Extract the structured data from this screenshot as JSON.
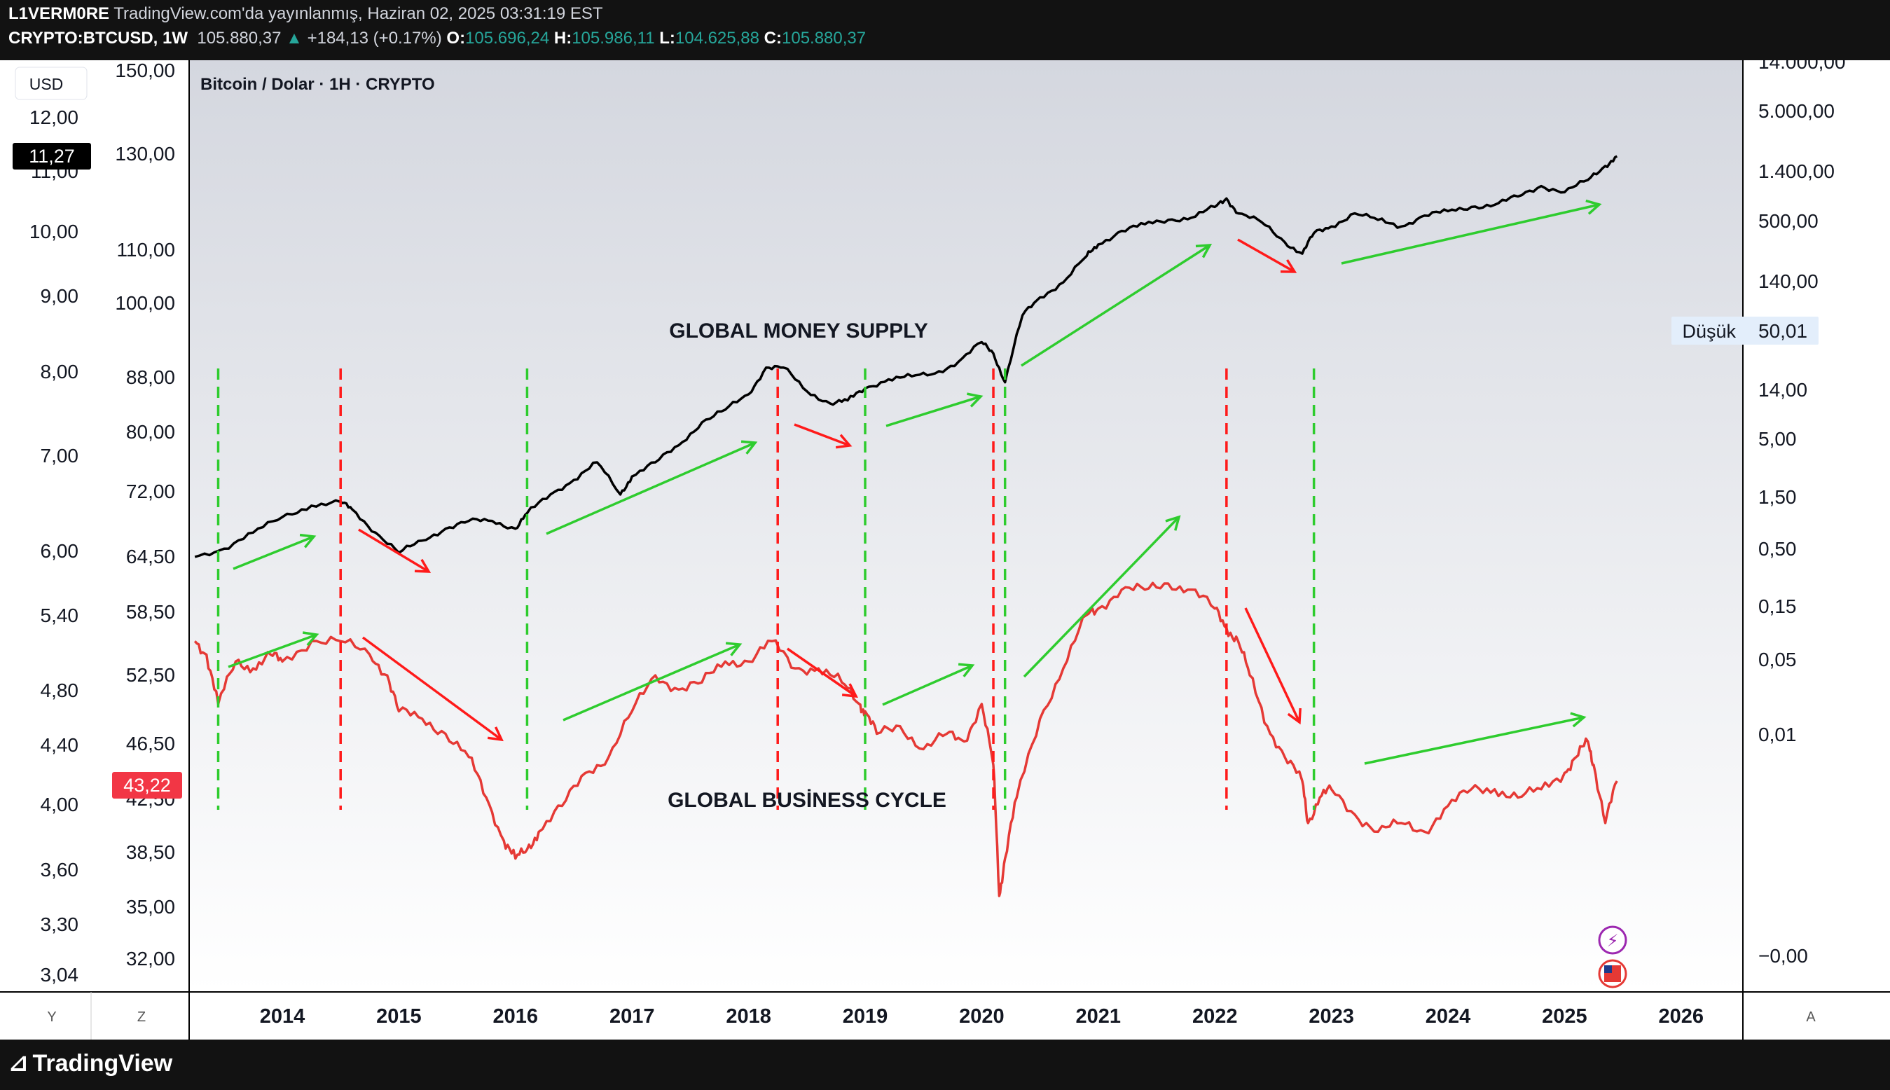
{
  "header": {
    "author": "L1VERM0RE",
    "published": "TradingView.com'da yayınlanmış, Haziran 02, 2025 03:31:19 EST",
    "symbol": "CRYPTO:BTCUSD, 1W",
    "last": "105.880,37",
    "change": "+184,13 (+0.17%)",
    "o_label": "O:",
    "o_value": "105.696,24",
    "h_label": "H:",
    "h_value": "105.986,11",
    "l_label": "L:",
    "l_value": "104.625,88",
    "c_label": "C:",
    "c_value": "105.880,37"
  },
  "footer": {
    "brand": "TradingView"
  },
  "colors": {
    "money_line": "#000000",
    "cycle_line": "#e53935",
    "up_arrow": "#2ecc2e",
    "down_arrow": "#ff1a1a",
    "panel_bg": "#ffffff"
  },
  "chart_data": {
    "type": "line",
    "title": "Bitcoin / Dolar · 1H · CRYPTO",
    "currency_button": "USD",
    "x_ticks": [
      "2014",
      "2015",
      "2016",
      "2017",
      "2018",
      "2019",
      "2020",
      "2021",
      "2022",
      "2023",
      "2024",
      "2025",
      "2026"
    ],
    "axis_corner_labels": {
      "y": "Y",
      "z": "Z",
      "a": "A"
    },
    "left_scale_a": {
      "ticks": [
        "12,00",
        "11,00",
        "10,00",
        "9,00",
        "8,00",
        "7,00",
        "6,00",
        "5,40",
        "4,80",
        "4,40",
        "4,00",
        "3,60",
        "3,30",
        "3,04"
      ],
      "badge": "11,27"
    },
    "left_scale_b": {
      "ticks": [
        "150,00",
        "130,00",
        "110,00",
        "100,00",
        "88,00",
        "80,00",
        "72,00",
        "64,50",
        "58,50",
        "52,50",
        "46,50",
        "42,50",
        "38,50",
        "35,00",
        "32,00"
      ],
      "badge": "43,22"
    },
    "right_scale": {
      "ticks": [
        "14.000,00",
        "5.000,00",
        "1.400,00",
        "500,00",
        "140,00",
        "50,01",
        "14,00",
        "5,00",
        "1,50",
        "0,50",
        "0,15",
        "0,05",
        "0,01",
        "−0,00"
      ],
      "low_label": "Düşük"
    },
    "annotations": {
      "money": "GLOBAL MONEY SUPPLY",
      "cycle": "GLOBAL BUSİNESS CYCLE"
    },
    "series": [
      {
        "name": "GLOBAL MONEY SUPPLY",
        "x": [
          2013.25,
          2013.5,
          2013.75,
          2014.0,
          2014.25,
          2014.5,
          2014.6,
          2014.8,
          2015.0,
          2015.2,
          2015.4,
          2015.6,
          2015.8,
          2016.0,
          2016.1,
          2016.3,
          2016.5,
          2016.7,
          2016.9,
          2017.0,
          2017.2,
          2017.4,
          2017.6,
          2017.8,
          2018.0,
          2018.15,
          2018.3,
          2018.5,
          2018.7,
          2018.85,
          2019.0,
          2019.2,
          2019.4,
          2019.6,
          2019.8,
          2020.0,
          2020.1,
          2020.2,
          2020.35,
          2020.5,
          2020.7,
          2020.9,
          2021.0,
          2021.2,
          2021.4,
          2021.6,
          2021.8,
          2022.0,
          2022.1,
          2022.2,
          2022.4,
          2022.6,
          2022.75,
          2022.85,
          2023.0,
          2023.2,
          2023.4,
          2023.6,
          2023.8,
          2024.0,
          2024.2,
          2024.4,
          2024.6,
          2024.8,
          2025.0,
          2025.2,
          2025.35,
          2025.45
        ],
        "values": [
          63.5,
          64.5,
          66.5,
          68.5,
          70.0,
          70.5,
          69.5,
          66.5,
          64.0,
          65.5,
          67.0,
          68.0,
          68.0,
          67.0,
          69.0,
          71.5,
          73.5,
          76.0,
          71.5,
          74.0,
          76.0,
          78.5,
          82.0,
          84.0,
          86.5,
          91.0,
          91.0,
          87.0,
          85.0,
          85.5,
          87.5,
          89.0,
          89.5,
          90.0,
          92.0,
          95.5,
          93.5,
          88.5,
          100.5,
          104.0,
          107.0,
          112.5,
          115.0,
          118.0,
          119.5,
          120.5,
          121.0,
          123.5,
          125.5,
          122.0,
          120.0,
          115.5,
          113.0,
          117.5,
          119.0,
          122.0,
          120.5,
          119.0,
          121.5,
          122.5,
          123.5,
          124.0,
          126.0,
          128.5,
          127.0,
          130.0,
          133.5,
          136.0
        ]
      },
      {
        "name": "GLOBAL BUSİNESS CYCLE",
        "x": [
          2013.25,
          2013.35,
          2013.45,
          2013.6,
          2013.75,
          2013.9,
          2014.0,
          2014.25,
          2014.5,
          2014.75,
          2014.9,
          2015.0,
          2015.2,
          2015.4,
          2015.6,
          2015.75,
          2015.9,
          2016.0,
          2016.1,
          2016.2,
          2016.4,
          2016.6,
          2016.8,
          2017.0,
          2017.2,
          2017.4,
          2017.6,
          2017.8,
          2018.0,
          2018.2,
          2018.4,
          2018.6,
          2018.8,
          2018.95,
          2019.0,
          2019.1,
          2019.3,
          2019.5,
          2019.7,
          2019.85,
          2020.0,
          2020.1,
          2020.15,
          2020.2,
          2020.3,
          2020.5,
          2020.7,
          2020.9,
          2021.0,
          2021.2,
          2021.4,
          2021.6,
          2021.8,
          2022.0,
          2022.1,
          2022.2,
          2022.3,
          2022.45,
          2022.6,
          2022.75,
          2022.8,
          2022.9,
          2023.0,
          2023.2,
          2023.4,
          2023.6,
          2023.8,
          2024.0,
          2024.2,
          2024.4,
          2024.6,
          2024.8,
          2025.0,
          2025.1,
          2025.2,
          2025.25,
          2025.35,
          2025.45
        ],
        "values": [
          52.5,
          51.5,
          48.0,
          51.0,
          50.5,
          51.5,
          51.0,
          52.5,
          52.5,
          51.5,
          50.0,
          47.5,
          47.0,
          46.0,
          44.5,
          42.0,
          39.5,
          38.5,
          39.0,
          40.0,
          41.5,
          43.5,
          44.5,
          47.5,
          50.0,
          49.0,
          49.5,
          51.0,
          51.0,
          52.5,
          50.5,
          50.5,
          49.5,
          48.0,
          47.5,
          46.0,
          46.5,
          45.0,
          46.0,
          45.5,
          48.0,
          44.0,
          36.5,
          38.5,
          42.0,
          47.0,
          50.5,
          54.5,
          55.0,
          56.5,
          56.5,
          57.0,
          56.5,
          55.0,
          53.5,
          52.5,
          50.0,
          46.5,
          44.5,
          43.0,
          40.5,
          42.0,
          42.5,
          41.0,
          40.0,
          40.5,
          40.0,
          41.5,
          42.5,
          42.5,
          42.0,
          42.5,
          43.5,
          44.5,
          45.5,
          44.0,
          40.5,
          43.0
        ]
      }
    ]
  }
}
